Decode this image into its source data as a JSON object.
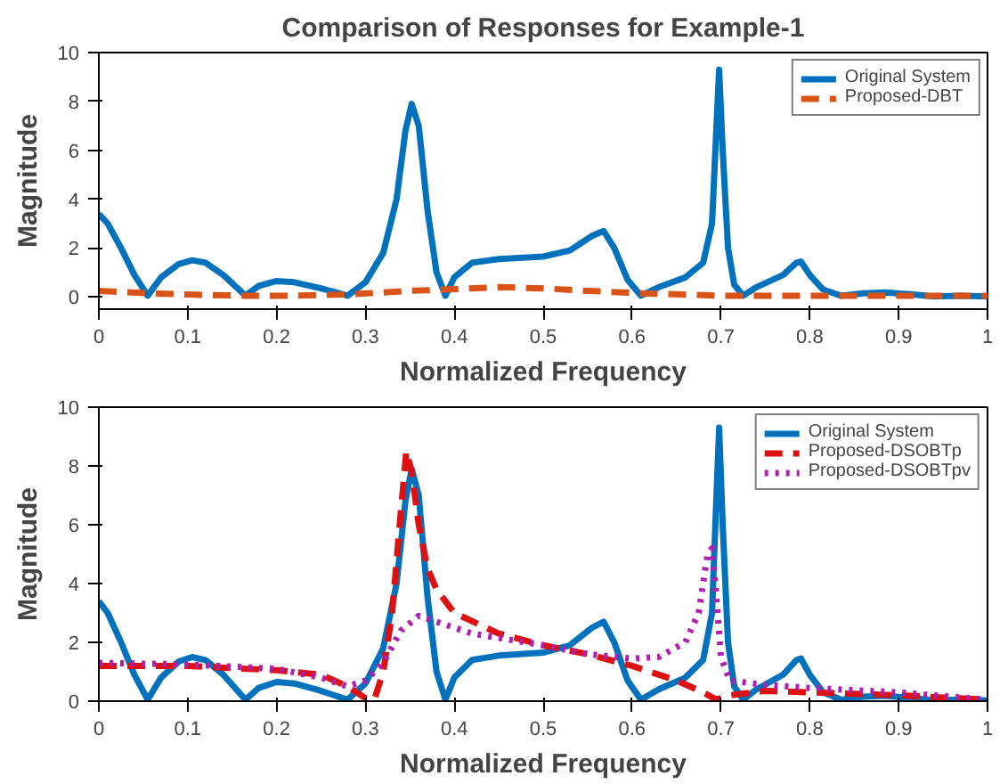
{
  "chart_data": [
    {
      "type": "line",
      "title": "Comparison of Responses for Example-1",
      "xlabel": "Normalized Frequency",
      "ylabel": "Magnitude",
      "xlim": [
        0,
        1
      ],
      "ylim": [
        -0.5,
        10
      ],
      "xticks": [
        0,
        0.1,
        0.2,
        0.3,
        0.4,
        0.5,
        0.6,
        0.7,
        0.8,
        0.9,
        1
      ],
      "yticks": [
        0,
        2,
        4,
        6,
        8,
        10
      ],
      "legend": "top right",
      "series": [
        {
          "name": "Original System",
          "color": "#0072bd",
          "line_style": "solid",
          "x": [
            0,
            0.01,
            0.025,
            0.04,
            0.055,
            0.07,
            0.09,
            0.105,
            0.12,
            0.14,
            0.165,
            0.18,
            0.2,
            0.22,
            0.25,
            0.28,
            0.3,
            0.32,
            0.335,
            0.345,
            0.352,
            0.36,
            0.37,
            0.38,
            0.39,
            0.4,
            0.42,
            0.45,
            0.5,
            0.53,
            0.555,
            0.568,
            0.58,
            0.595,
            0.61,
            0.63,
            0.66,
            0.68,
            0.69,
            0.695,
            0.698,
            0.702,
            0.708,
            0.715,
            0.725,
            0.74,
            0.77,
            0.785,
            0.79,
            0.8,
            0.815,
            0.835,
            0.86,
            0.885,
            0.91,
            0.94,
            0.97,
            1.0
          ],
          "values": [
            3.4,
            3.0,
            2.0,
            0.9,
            0.05,
            0.8,
            1.35,
            1.5,
            1.4,
            0.9,
            0.05,
            0.45,
            0.65,
            0.6,
            0.35,
            0.05,
            0.6,
            1.8,
            4.0,
            6.8,
            7.9,
            7.0,
            3.5,
            1.0,
            0.05,
            0.8,
            1.4,
            1.55,
            1.65,
            1.9,
            2.5,
            2.7,
            2.0,
            0.7,
            0.05,
            0.4,
            0.8,
            1.4,
            3.0,
            7.0,
            9.3,
            6.0,
            2.0,
            0.5,
            0.05,
            0.4,
            0.9,
            1.4,
            1.45,
            0.9,
            0.3,
            0.05,
            0.15,
            0.18,
            0.12,
            0.02,
            0.05,
            0.02
          ]
        },
        {
          "name": "Proposed-DBT",
          "color": "#d95319",
          "line_style": "dashed",
          "x": [
            0,
            0.055,
            0.1,
            0.165,
            0.22,
            0.28,
            0.35,
            0.39,
            0.45,
            0.5,
            0.55,
            0.61,
            0.7,
            0.8,
            0.9,
            1.0
          ],
          "values": [
            0.25,
            0.15,
            0.1,
            0.05,
            0.05,
            0.1,
            0.25,
            0.3,
            0.4,
            0.35,
            0.25,
            0.15,
            0.05,
            0.05,
            0.05,
            0.05
          ]
        }
      ]
    },
    {
      "type": "line",
      "xlabel": "Normalized Frequency",
      "ylabel": "Magnitude",
      "xlim": [
        0,
        1
      ],
      "ylim": [
        0,
        10
      ],
      "xticks": [
        0,
        0.1,
        0.2,
        0.3,
        0.4,
        0.5,
        0.6,
        0.7,
        0.8,
        0.9,
        1
      ],
      "yticks": [
        0,
        2,
        4,
        6,
        8,
        10
      ],
      "legend": "top right",
      "series": [
        {
          "name": "Original System",
          "color": "#0072bd",
          "line_style": "solid",
          "x": [
            0,
            0.01,
            0.025,
            0.04,
            0.055,
            0.07,
            0.09,
            0.105,
            0.12,
            0.14,
            0.165,
            0.18,
            0.2,
            0.22,
            0.25,
            0.28,
            0.3,
            0.32,
            0.335,
            0.345,
            0.352,
            0.36,
            0.37,
            0.38,
            0.39,
            0.4,
            0.42,
            0.45,
            0.5,
            0.53,
            0.555,
            0.568,
            0.58,
            0.595,
            0.61,
            0.63,
            0.66,
            0.68,
            0.69,
            0.695,
            0.698,
            0.702,
            0.708,
            0.715,
            0.725,
            0.74,
            0.77,
            0.785,
            0.79,
            0.8,
            0.815,
            0.835,
            0.86,
            0.885,
            0.91,
            0.94,
            0.97,
            1.0
          ],
          "values": [
            3.4,
            3.0,
            2.0,
            0.9,
            0.05,
            0.8,
            1.35,
            1.5,
            1.4,
            0.9,
            0.05,
            0.45,
            0.65,
            0.6,
            0.35,
            0.05,
            0.6,
            1.8,
            4.0,
            6.8,
            7.9,
            7.0,
            3.5,
            1.0,
            0.05,
            0.8,
            1.4,
            1.55,
            1.65,
            1.9,
            2.5,
            2.7,
            2.0,
            0.7,
            0.05,
            0.4,
            0.8,
            1.4,
            3.0,
            7.0,
            9.3,
            6.0,
            2.0,
            0.5,
            0.05,
            0.4,
            0.9,
            1.4,
            1.45,
            0.9,
            0.3,
            0.05,
            0.15,
            0.18,
            0.12,
            0.02,
            0.05,
            0.02
          ]
        },
        {
          "name": "Proposed-DSOBTp",
          "color": "#dd1111",
          "line_style": "dashed",
          "x": [
            0,
            0.1,
            0.2,
            0.25,
            0.28,
            0.3,
            0.31,
            0.32,
            0.33,
            0.34,
            0.346,
            0.352,
            0.36,
            0.37,
            0.38,
            0.4,
            0.45,
            0.5,
            0.55,
            0.6,
            0.65,
            0.68,
            0.695,
            0.71,
            0.75,
            0.8,
            0.9,
            1.0
          ],
          "values": [
            1.2,
            1.2,
            1.05,
            0.9,
            0.5,
            0.1,
            0.05,
            1.0,
            3.0,
            6.5,
            8.5,
            7.8,
            6.0,
            4.5,
            3.8,
            3.0,
            2.3,
            1.9,
            1.6,
            1.2,
            0.7,
            0.3,
            0.05,
            0.2,
            0.35,
            0.3,
            0.2,
            0.05
          ]
        },
        {
          "name": "Proposed-DSOBTpv",
          "color": "#b020b0",
          "line_style": "dotted",
          "x": [
            0,
            0.1,
            0.2,
            0.25,
            0.28,
            0.3,
            0.32,
            0.34,
            0.36,
            0.38,
            0.42,
            0.5,
            0.55,
            0.6,
            0.63,
            0.66,
            0.675,
            0.685,
            0.69,
            0.695,
            0.7,
            0.71,
            0.75,
            0.8,
            0.9,
            1.0
          ],
          "values": [
            1.3,
            1.25,
            1.1,
            0.8,
            0.5,
            0.7,
            1.3,
            2.4,
            2.9,
            2.7,
            2.3,
            1.9,
            1.6,
            1.45,
            1.5,
            2.0,
            3.0,
            5.0,
            5.2,
            3.5,
            1.5,
            0.7,
            0.55,
            0.45,
            0.3,
            0.05
          ]
        }
      ]
    }
  ]
}
